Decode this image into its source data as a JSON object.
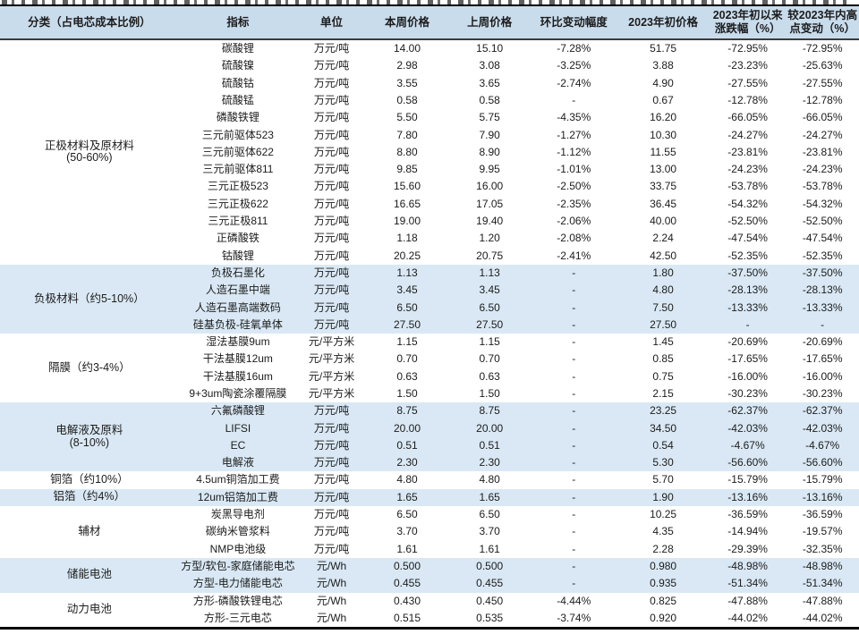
{
  "colors": {
    "header_bg": "#c9dcec",
    "shaded_row_bg": "#d9e8f4",
    "border_dark": "#000000",
    "text": "#1c1c1c"
  },
  "table": {
    "headers": [
      "分类（占电芯成本比例）",
      "指标",
      "单位",
      "本周价格",
      "上周价格",
      "环比变动幅度",
      "2023年初价格",
      "2023年初以来涨跌幅（%）",
      "较2023年内高点变动（%）"
    ],
    "sections": [
      {
        "category": "正极材料及原材料",
        "sublabel": "(50-60%)",
        "shaded": false,
        "rows": [
          {
            "values": [
              "碳酸锂",
              "万元/吨",
              "14.00",
              "15.10",
              "-7.28%",
              "51.75",
              "-72.95%",
              "-72.95%"
            ]
          },
          {
            "values": [
              "硫酸镍",
              "万元/吨",
              "2.98",
              "3.08",
              "-3.25%",
              "3.88",
              "-23.23%",
              "-25.63%"
            ]
          },
          {
            "values": [
              "硫酸钴",
              "万元/吨",
              "3.55",
              "3.65",
              "-2.74%",
              "4.90",
              "-27.55%",
              "-27.55%"
            ]
          },
          {
            "values": [
              "硫酸锰",
              "万元/吨",
              "0.58",
              "0.58",
              "-",
              "0.67",
              "-12.78%",
              "-12.78%"
            ]
          },
          {
            "values": [
              "磷酸铁锂",
              "万元/吨",
              "5.50",
              "5.75",
              "-4.35%",
              "16.20",
              "-66.05%",
              "-66.05%"
            ]
          },
          {
            "values": [
              "三元前驱体523",
              "万元/吨",
              "7.80",
              "7.90",
              "-1.27%",
              "10.30",
              "-24.27%",
              "-24.27%"
            ]
          },
          {
            "values": [
              "三元前驱体622",
              "万元/吨",
              "8.80",
              "8.90",
              "-1.12%",
              "11.55",
              "-23.81%",
              "-23.81%"
            ]
          },
          {
            "values": [
              "三元前驱体811",
              "万元/吨",
              "9.85",
              "9.95",
              "-1.01%",
              "13.00",
              "-24.23%",
              "-24.23%"
            ]
          },
          {
            "values": [
              "三元正极523",
              "万元/吨",
              "15.60",
              "16.00",
              "-2.50%",
              "33.75",
              "-53.78%",
              "-53.78%"
            ]
          },
          {
            "values": [
              "三元正极622",
              "万元/吨",
              "16.65",
              "17.05",
              "-2.35%",
              "36.45",
              "-54.32%",
              "-54.32%"
            ]
          },
          {
            "values": [
              "三元正极811",
              "万元/吨",
              "19.00",
              "19.40",
              "-2.06%",
              "40.00",
              "-52.50%",
              "-52.50%"
            ]
          },
          {
            "values": [
              "正磷酸铁",
              "万元/吨",
              "1.18",
              "1.20",
              "-2.08%",
              "2.24",
              "-47.54%",
              "-47.54%"
            ]
          },
          {
            "values": [
              "钴酸锂",
              "万元/吨",
              "20.25",
              "20.75",
              "-2.41%",
              "42.50",
              "-52.35%",
              "-52.35%"
            ]
          }
        ]
      },
      {
        "category": "负极材料（约5-10%）",
        "sublabel": "",
        "shaded": true,
        "rows": [
          {
            "values": [
              "负极石墨化",
              "万元/吨",
              "1.13",
              "1.13",
              "-",
              "1.80",
              "-37.50%",
              "-37.50%"
            ]
          },
          {
            "values": [
              "人造石墨中端",
              "万元/吨",
              "3.45",
              "3.45",
              "-",
              "4.80",
              "-28.13%",
              "-28.13%"
            ]
          },
          {
            "values": [
              "人造石墨高端数码",
              "万元/吨",
              "6.50",
              "6.50",
              "-",
              "7.50",
              "-13.33%",
              "-13.33%"
            ]
          },
          {
            "values": [
              "硅基负极-硅氧单体",
              "万元/吨",
              "27.50",
              "27.50",
              "-",
              "27.50",
              "-",
              "-"
            ]
          }
        ]
      },
      {
        "category": "隔膜（约3-4%）",
        "sublabel": "",
        "shaded": false,
        "rows": [
          {
            "values": [
              "湿法基膜9um",
              "元/平方米",
              "1.15",
              "1.15",
              "-",
              "1.45",
              "-20.69%",
              "-20.69%"
            ]
          },
          {
            "values": [
              "干法基膜12um",
              "元/平方米",
              "0.70",
              "0.70",
              "-",
              "0.85",
              "-17.65%",
              "-17.65%"
            ]
          },
          {
            "values": [
              "干法基膜16um",
              "元/平方米",
              "0.63",
              "0.63",
              "-",
              "0.75",
              "-16.00%",
              "-16.00%"
            ]
          },
          {
            "values": [
              "9+3um陶瓷涂覆隔膜",
              "元/平方米",
              "1.50",
              "1.50",
              "-",
              "2.15",
              "-30.23%",
              "-30.23%"
            ]
          }
        ]
      },
      {
        "category": "电解液及原料",
        "sublabel": "(8-10%)",
        "shaded": true,
        "rows": [
          {
            "values": [
              "六氟磷酸锂",
              "万元/吨",
              "8.75",
              "8.75",
              "-",
              "23.25",
              "-62.37%",
              "-62.37%"
            ]
          },
          {
            "values": [
              "LIFSI",
              "万元/吨",
              "20.00",
              "20.00",
              "-",
              "34.50",
              "-42.03%",
              "-42.03%"
            ]
          },
          {
            "values": [
              "EC",
              "万元/吨",
              "0.51",
              "0.51",
              "-",
              "0.54",
              "-4.67%",
              "-4.67%"
            ]
          },
          {
            "values": [
              "电解液",
              "万元/吨",
              "2.30",
              "2.30",
              "-",
              "5.30",
              "-56.60%",
              "-56.60%"
            ]
          }
        ]
      },
      {
        "category": "铜箔（约10%）",
        "sublabel": "",
        "shaded": false,
        "rows": [
          {
            "values": [
              "4.5um铜箔加工费",
              "万元/吨",
              "4.80",
              "4.80",
              "-",
              "5.70",
              "-15.79%",
              "-15.79%"
            ]
          }
        ]
      },
      {
        "category": "铝箔（约4%）",
        "sublabel": "",
        "shaded": true,
        "rows": [
          {
            "values": [
              "12um铝箔加工费",
              "万元/吨",
              "1.65",
              "1.65",
              "-",
              "1.90",
              "-13.16%",
              "-13.16%"
            ]
          }
        ]
      },
      {
        "category": "辅材",
        "sublabel": "",
        "shaded": false,
        "rows": [
          {
            "values": [
              "炭黑导电剂",
              "万元/吨",
              "6.50",
              "6.50",
              "-",
              "10.25",
              "-36.59%",
              "-36.59%"
            ]
          },
          {
            "values": [
              "碳纳米管浆料",
              "万元/吨",
              "3.70",
              "3.70",
              "-",
              "4.35",
              "-14.94%",
              "-19.57%"
            ]
          },
          {
            "values": [
              "NMP电池级",
              "万元/吨",
              "1.61",
              "1.61",
              "-",
              "2.28",
              "-29.39%",
              "-32.35%"
            ]
          }
        ]
      },
      {
        "category": "储能电池",
        "sublabel": "",
        "shaded": true,
        "rows": [
          {
            "values": [
              "方型/软包-家庭储能电芯",
              "元/Wh",
              "0.500",
              "0.500",
              "-",
              "0.980",
              "-48.98%",
              "-48.98%"
            ]
          },
          {
            "values": [
              "方型-电力储能电芯",
              "元/Wh",
              "0.455",
              "0.455",
              "-",
              "0.935",
              "-51.34%",
              "-51.34%"
            ]
          }
        ]
      },
      {
        "category": "动力电池",
        "sublabel": "",
        "shaded": false,
        "rows": [
          {
            "values": [
              "方形-磷酸铁锂电芯",
              "元/Wh",
              "0.430",
              "0.450",
              "-4.44%",
              "0.825",
              "-47.88%",
              "-47.88%"
            ]
          },
          {
            "values": [
              "方形-三元电芯",
              "元/Wh",
              "0.515",
              "0.535",
              "-3.74%",
              "0.920",
              "-44.02%",
              "-44.02%"
            ]
          }
        ]
      }
    ]
  }
}
